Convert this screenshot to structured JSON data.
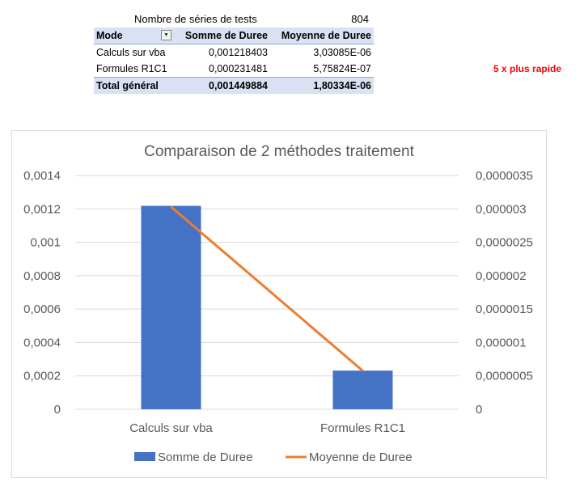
{
  "tests": {
    "label": "Nombre de séries de tests",
    "value": "804"
  },
  "pivot": {
    "headers": [
      "Mode",
      "Somme de Duree",
      "Moyenne de Duree"
    ],
    "rows": [
      {
        "mode": "Calculs sur vba",
        "somme": "0,001218403",
        "moyenne": "3,03085E-06"
      },
      {
        "mode": "Formules R1C1",
        "somme": "0,000231481",
        "moyenne": "5,75824E-07"
      }
    ],
    "total": {
      "mode": "Total général",
      "somme": "0,001449884",
      "moyenne": "1,80334E-06"
    }
  },
  "note": "5  x plus rapide",
  "colors": {
    "bar": "#4472c4",
    "line": "#ed7d31",
    "header_bg": "#d9e1f2",
    "note": "#ff0000"
  },
  "chart_data": {
    "type": "bar",
    "title": "Comparaison de 2 méthodes traitement",
    "categories": [
      "Calculs sur vba",
      "Formules R1C1"
    ],
    "series": [
      {
        "name": "Somme de Duree",
        "kind": "bar",
        "axis": "left",
        "values": [
          0.001218403,
          0.000231481
        ]
      },
      {
        "name": "Moyenne de Duree",
        "kind": "line",
        "axis": "right",
        "values": [
          3.03085e-06,
          5.75824e-07
        ]
      }
    ],
    "y_left": {
      "min": 0,
      "max": 0.0014,
      "ticks": [
        "0",
        "0,0002",
        "0,0004",
        "0,0006",
        "0,0008",
        "0,001",
        "0,0012",
        "0,0014"
      ]
    },
    "y_right": {
      "min": 0,
      "max": 3.5e-06,
      "ticks": [
        "0",
        "0,0000005",
        "0,000001",
        "0,0000015",
        "0,000002",
        "0,0000025",
        "0,000003",
        "0,0000035"
      ]
    },
    "grid": true,
    "legend": "bottom"
  }
}
